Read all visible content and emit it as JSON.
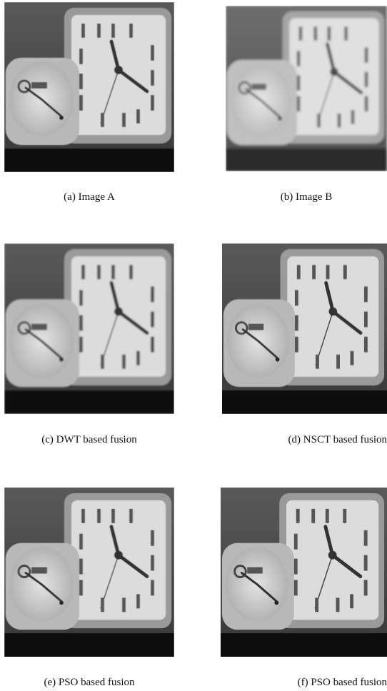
{
  "panels": [
    {
      "caption": "(a) Image A"
    },
    {
      "caption": "(b) Image B"
    },
    {
      "caption": "(c) DWT based fusion"
    },
    {
      "caption": "(d) NSCT based fusion"
    },
    {
      "caption": "(e) PSO based fusion"
    },
    {
      "caption": "(f) PSO based fusion"
    }
  ]
}
